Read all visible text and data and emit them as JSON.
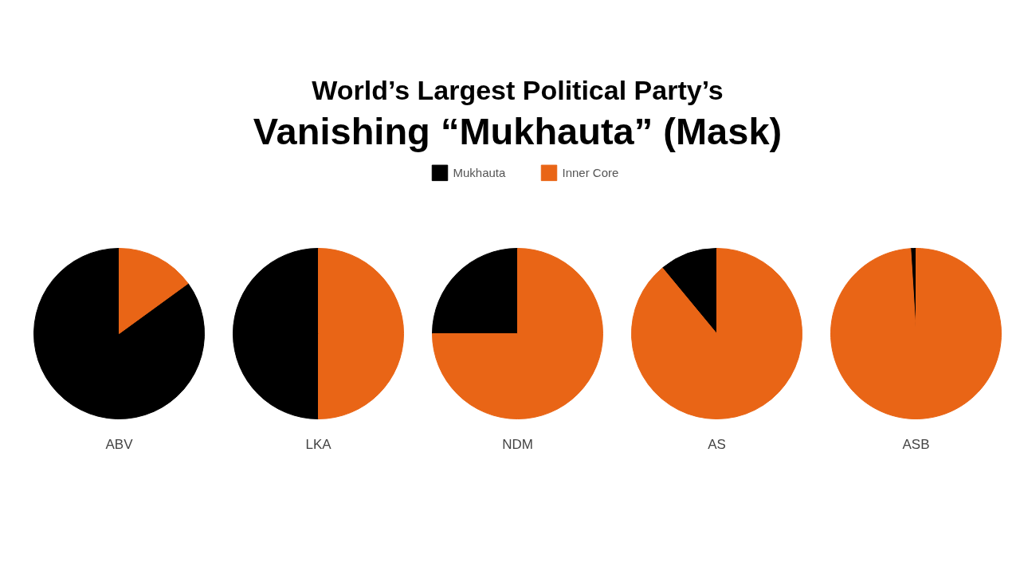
{
  "chart_data": {
    "type": "pie",
    "title": "World’s Largest Political Party’s",
    "subtitle": "Vanishing “Mukhauta” (Mask)",
    "categories": [
      "Mukhauta",
      "Inner Core"
    ],
    "colors": [
      "#000000",
      "#e96516"
    ],
    "series": [
      {
        "name": "ABV",
        "values": [
          85,
          15
        ]
      },
      {
        "name": "LKA",
        "values": [
          50,
          50
        ]
      },
      {
        "name": "NDM",
        "values": [
          25,
          75
        ]
      },
      {
        "name": "AS",
        "values": [
          11,
          89
        ]
      },
      {
        "name": "ASB",
        "values": [
          1,
          99
        ]
      }
    ],
    "legend": "top"
  }
}
